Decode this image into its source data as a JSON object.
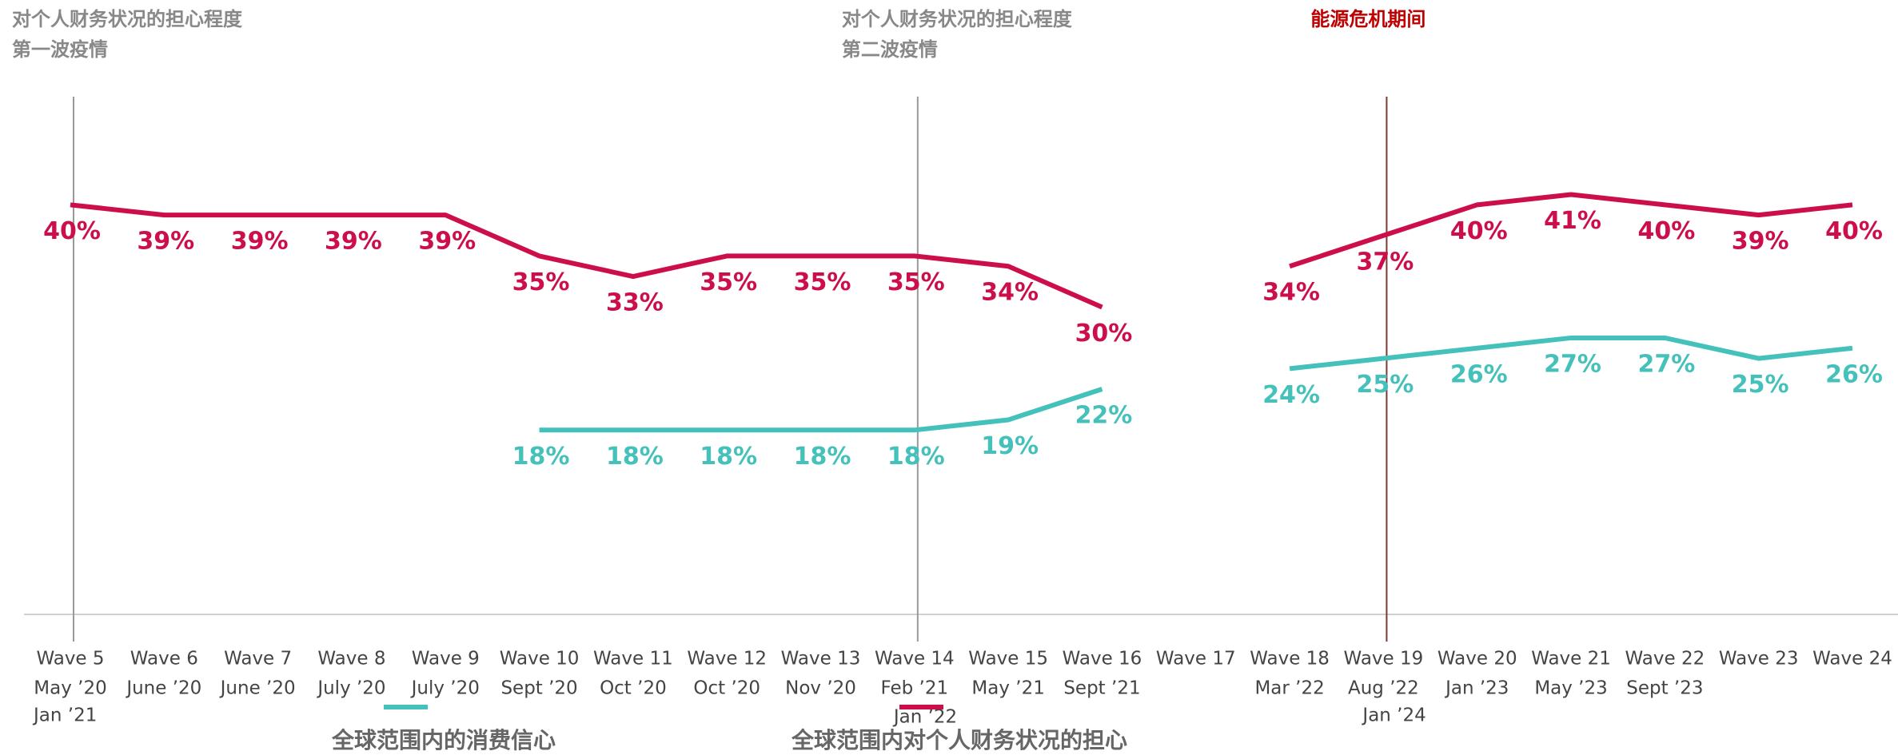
{
  "chart_data": {
    "type": "line",
    "categories": [
      "Wave 5",
      "Wave 6",
      "Wave 7",
      "Wave 8",
      "Wave 9",
      "Wave 10",
      "Wave 11",
      "Wave 12",
      "Wave 13",
      "Wave 14",
      "Wave 15",
      "Wave 16",
      "Wave 17",
      "Wave 18",
      "Wave 19",
      "Wave 20",
      "Wave 21",
      "Wave 22",
      "Wave 23",
      "Wave 24"
    ],
    "category_dates": [
      "May ’20",
      "June ’20",
      "June ’20",
      "July ’20",
      "July ’20",
      "Sept ’20",
      "Oct ’20",
      "Oct ’20",
      "Nov ’20",
      "Feb ’21",
      "May ’21",
      "Sept ’21",
      null,
      "Mar ’22",
      "Aug ’22",
      "Jan ’23",
      "May ’23",
      "Sept ’23",
      null,
      null
    ],
    "ylim": [
      0,
      60
    ],
    "series": [
      {
        "name": "全球范围内的消费信心",
        "color": "#45c1bb",
        "values": [
          null,
          null,
          null,
          null,
          null,
          18,
          18,
          18,
          18,
          18,
          19,
          22,
          null,
          24,
          25,
          26,
          27,
          27,
          25,
          26
        ],
        "value_labels": [
          null,
          null,
          null,
          null,
          null,
          "18%",
          "18%",
          "18%",
          "18%",
          "18%",
          "19%",
          "22%",
          null,
          "24%",
          "25%",
          "26%",
          "27%",
          "27%",
          "25%",
          "26%"
        ]
      },
      {
        "name": "全球范围内对个人财务状况的担心",
        "color": "#cc0f4b",
        "values": [
          40,
          39,
          39,
          39,
          39,
          35,
          33,
          35,
          35,
          35,
          34,
          30,
          null,
          34,
          37,
          40,
          41,
          40,
          39,
          40
        ],
        "value_labels": [
          "40%",
          "39%",
          "39%",
          "39%",
          "39%",
          "35%",
          "33%",
          "35%",
          "35%",
          "35%",
          "34%",
          "30%",
          null,
          "34%",
          "37%",
          "40%",
          "41%",
          "40%",
          "39%",
          "40%"
        ]
      }
    ],
    "annotations": [
      {
        "category": "Wave 5",
        "lines": [
          "对个人财务状况的担心程度",
          "第一波疫情"
        ],
        "date": "Jan ’21",
        "color": "#888888"
      },
      {
        "category": "Wave 14",
        "lines": [
          "对个人财务状况的担心程度",
          "第二波疫情"
        ],
        "date": "Jan ’22",
        "color": "#888888"
      },
      {
        "category": "Wave 19",
        "lines": [
          "能源危机期间"
        ],
        "date": "Jan ’24",
        "color": "#c00000"
      }
    ]
  }
}
